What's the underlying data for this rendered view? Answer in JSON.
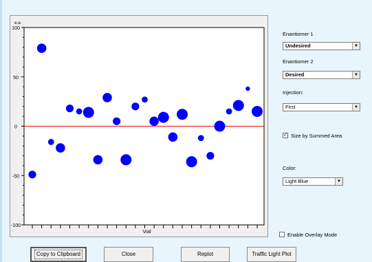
{
  "plot": {
    "y_top_label": "e.e.",
    "y_ticks": [
      "100",
      "50",
      "0",
      "-50",
      "-100"
    ],
    "xlabel": "Vial",
    "dot_color": "#0000ff",
    "zero_line_color": "#ff0000"
  },
  "chart_data": {
    "type": "scatter",
    "title": "",
    "xlabel": "Vial",
    "ylabel": "e.e.",
    "ylim": [
      -100,
      100
    ],
    "yticks": [
      100,
      50,
      0,
      -50,
      -100
    ],
    "grid": false,
    "points": [
      {
        "x": 1,
        "y": -49,
        "size": 3
      },
      {
        "x": 2,
        "y": 79,
        "size": 4
      },
      {
        "x": 3,
        "y": -16,
        "size": 2
      },
      {
        "x": 4,
        "y": -22,
        "size": 4
      },
      {
        "x": 5,
        "y": 18,
        "size": 3
      },
      {
        "x": 6,
        "y": 15,
        "size": 2
      },
      {
        "x": 7,
        "y": 14,
        "size": 5
      },
      {
        "x": 8,
        "y": -34,
        "size": 4
      },
      {
        "x": 9,
        "y": 29,
        "size": 4
      },
      {
        "x": 10,
        "y": 5,
        "size": 3
      },
      {
        "x": 11,
        "y": -34,
        "size": 5
      },
      {
        "x": 12,
        "y": 20,
        "size": 3
      },
      {
        "x": 13,
        "y": 27,
        "size": 2
      },
      {
        "x": 14,
        "y": 5,
        "size": 4
      },
      {
        "x": 15,
        "y": 9,
        "size": 5
      },
      {
        "x": 16,
        "y": -11,
        "size": 4
      },
      {
        "x": 17,
        "y": 12,
        "size": 5
      },
      {
        "x": 18,
        "y": -36,
        "size": 5
      },
      {
        "x": 19,
        "y": -12,
        "size": 2
      },
      {
        "x": 20,
        "y": -30,
        "size": 3
      },
      {
        "x": 21,
        "y": 0,
        "size": 5
      },
      {
        "x": 22,
        "y": 15,
        "size": 2
      },
      {
        "x": 23,
        "y": 21,
        "size": 5
      },
      {
        "x": 24,
        "y": 38,
        "size": 1
      },
      {
        "x": 25,
        "y": 15,
        "size": 5
      }
    ]
  },
  "controls": {
    "enantiomer1_label": "Enantiomer 1",
    "enantiomer1_value": "Undesired",
    "enantiomer2_label": "Enantiomer 2",
    "enantiomer2_value": "Desired",
    "injection_label": "Injection:",
    "injection_value": "First",
    "size_by_label": "Size by Summed Area",
    "size_by_checked": true,
    "color_label": "Color:",
    "color_value": "Light Blue",
    "overlay_label": "Enable Overlay Mode",
    "overlay_checked": false
  },
  "buttons": {
    "copy": "Copy to Clipboard",
    "close": "Close",
    "replot": "Replot",
    "traffic": "Traffic Light Plot"
  }
}
